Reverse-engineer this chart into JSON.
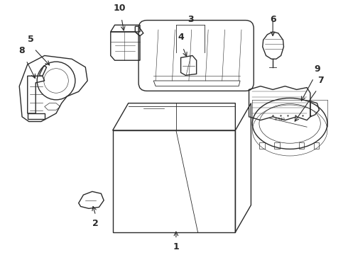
{
  "background_color": "#ffffff",
  "line_color": "#2a2a2a",
  "label_color": "#111111",
  "fig_width": 4.9,
  "fig_height": 3.6,
  "dpi": 100
}
